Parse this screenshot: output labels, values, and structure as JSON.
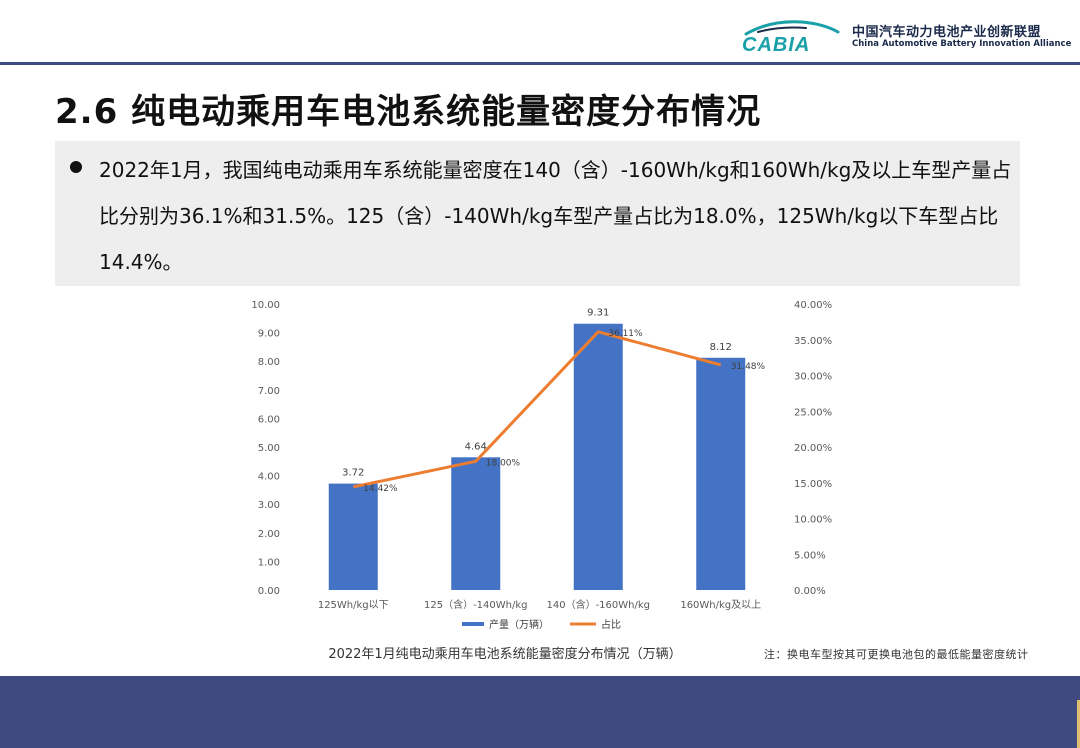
{
  "header": {
    "logo_text": "CABIA",
    "org_name_cn": "中国汽车动力电池产业创新联盟",
    "org_name_en": "China Automotive Battery Innovation Alliance"
  },
  "slide": {
    "title": "2.6 纯电动乘用车电池系统能量密度分布情况",
    "summary": "2022年1月，我国纯电动乘用车系统能量密度在140（含）-160Wh/kg和160Wh/kg及以上车型产量占比分别为36.1%和31.5%。125（含）-140Wh/kg车型产量占比为18.0%，125Wh/kg以下车型占比14.4%。",
    "note": "注：换电车型按其可更换电池包的最低能量密度统计"
  },
  "colors": {
    "bar": "#4472c4",
    "line": "#ed7d31",
    "header_rule": "#3a4d86",
    "footer": "#3f4a80",
    "summary_bg": "#eeeeee"
  },
  "chart_data": {
    "type": "bar",
    "title": "2022年1月纯电动乘用车电池系统能量密度分布情况（万辆）",
    "categories": [
      "125Wh/kg以下",
      "125（含）-140Wh/kg",
      "140（含）-160Wh/kg",
      "160Wh/kg及以上"
    ],
    "series": [
      {
        "name": "产量（万辆）",
        "type": "bar",
        "axis": "left",
        "values": [
          3.72,
          4.64,
          9.31,
          8.12
        ],
        "labels": [
          "3.72",
          "4.64",
          "9.31",
          "8.12"
        ]
      },
      {
        "name": "占比",
        "type": "line",
        "axis": "right",
        "values": [
          14.42,
          18.0,
          36.11,
          31.48
        ],
        "labels": [
          "14.42%",
          "18.00%",
          "36.11%",
          "31.48%"
        ]
      }
    ],
    "y_left": {
      "lim": [
        0,
        10
      ],
      "ticks": [
        "0.00",
        "1.00",
        "2.00",
        "3.00",
        "4.00",
        "5.00",
        "6.00",
        "7.00",
        "8.00",
        "9.00",
        "10.00"
      ]
    },
    "y_right": {
      "lim": [
        0,
        40
      ],
      "ticks": [
        "0.00%",
        "5.00%",
        "10.00%",
        "15.00%",
        "20.00%",
        "25.00%",
        "30.00%",
        "35.00%",
        "40.00%"
      ]
    },
    "grid": false,
    "legend": "bottom"
  }
}
